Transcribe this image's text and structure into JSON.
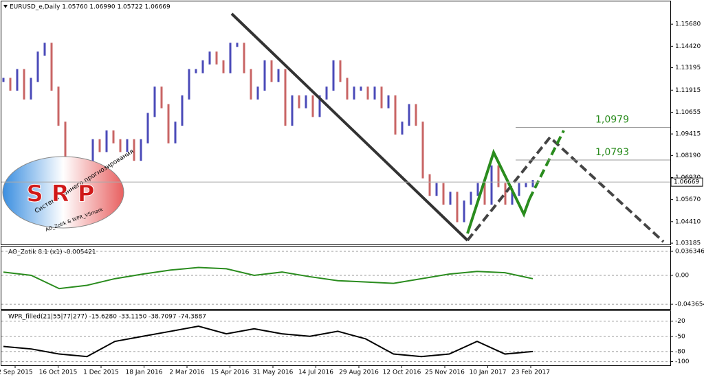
{
  "header": "EURUSD_e,Daily  1.05760 1.06990 1.05722 1.06669",
  "price": {
    "ylim": [
      1.0311,
      1.1698
    ],
    "yticks": [
      {
        "value": 1.1568,
        "label": "1.15680"
      },
      {
        "value": 1.1442,
        "label": "1.14420"
      },
      {
        "value": 1.13195,
        "label": "1.13195"
      },
      {
        "value": 1.11915,
        "label": "1.11915"
      },
      {
        "value": 1.10655,
        "label": "1.10655"
      },
      {
        "value": 1.09415,
        "label": "1.09415"
      },
      {
        "value": 1.0819,
        "label": "1.08190"
      },
      {
        "value": 1.0693,
        "label": "1.06930"
      },
      {
        "value": 1.0567,
        "label": "1.05670"
      },
      {
        "value": 1.0441,
        "label": "1.04410"
      },
      {
        "value": 1.03185,
        "label": "1.03185"
      }
    ],
    "current": 1.06669,
    "up_color": "#4a4ab8",
    "down_color": "#c86464",
    "closes": [
      1.125,
      1.12,
      1.13,
      1.115,
      1.125,
      1.14,
      1.145,
      1.12,
      1.1,
      1.08,
      1.07,
      1.065,
      1.075,
      1.09,
      1.085,
      1.095,
      1.09,
      1.085,
      1.09,
      1.08,
      1.09,
      1.105,
      1.12,
      1.11,
      1.09,
      1.1,
      1.115,
      1.13,
      1.13,
      1.135,
      1.14,
      1.135,
      1.13,
      1.145,
      1.145,
      1.13,
      1.115,
      1.12,
      1.135,
      1.125,
      1.13,
      1.1,
      1.115,
      1.11,
      1.115,
      1.105,
      1.115,
      1.12,
      1.135,
      1.125,
      1.115,
      1.12,
      1.12,
      1.115,
      1.12,
      1.11,
      1.115,
      1.095,
      1.1,
      1.11,
      1.1,
      1.07,
      1.06,
      1.065,
      1.055,
      1.06,
      1.045,
      1.055,
      1.06,
      1.065,
      1.055,
      1.075,
      1.065,
      1.055,
      1.06,
      1.065,
      1.065,
      1.0667
    ],
    "levels": [
      {
        "value": 1.0979,
        "label": "1,0979"
      },
      {
        "value": 1.0793,
        "label": "1,0793"
      }
    ]
  },
  "dates": [
    "2 Sep 2015",
    "16 Oct 2015",
    "1 Dec 2015",
    "18 Jan 2016",
    "2 Mar 2016",
    "15 Apr 2016",
    "31 May 2016",
    "14 Jul 2016",
    "29 Aug 2016",
    "12 Oct 2016",
    "25 Nov 2016",
    "10 Jan 2017",
    "23 Feb 2017"
  ],
  "logo": {
    "arc": "Система раннего прогнозирования",
    "name": "S R P",
    "credit": "AO_Zotik & WPR_VSmark"
  },
  "ao": {
    "title": "AO_Zotik 8.1 (x1) -0.005421",
    "ylim": [
      -0.0498,
      0.0436
    ],
    "yticks": [
      0.036346,
      {
        "value": 0,
        "label": "0.00"
      },
      -0.043654
    ],
    "values": [
      0.005,
      0.0,
      -0.02,
      -0.015,
      -0.005,
      0.002,
      0.008,
      0.012,
      0.01,
      0.0,
      0.005,
      -0.002,
      -0.008,
      -0.01,
      -0.012,
      -0.005,
      0.002,
      0.006,
      0.004,
      -0.005
    ]
  },
  "wpr": {
    "title": "WPR_filled(21|55|77|277) -15.6280 -33.1150 -38.7097 -74.3887",
    "ylim": [
      -106,
      0
    ],
    "yticks": [
      -20,
      -50,
      -80,
      -100
    ],
    "values": [
      -70,
      -75,
      -85,
      -90,
      -60,
      -50,
      -40,
      -30,
      -45,
      -35,
      -45,
      -50,
      -40,
      -55,
      -85,
      -90,
      -85,
      -60,
      -85,
      -80
    ]
  }
}
